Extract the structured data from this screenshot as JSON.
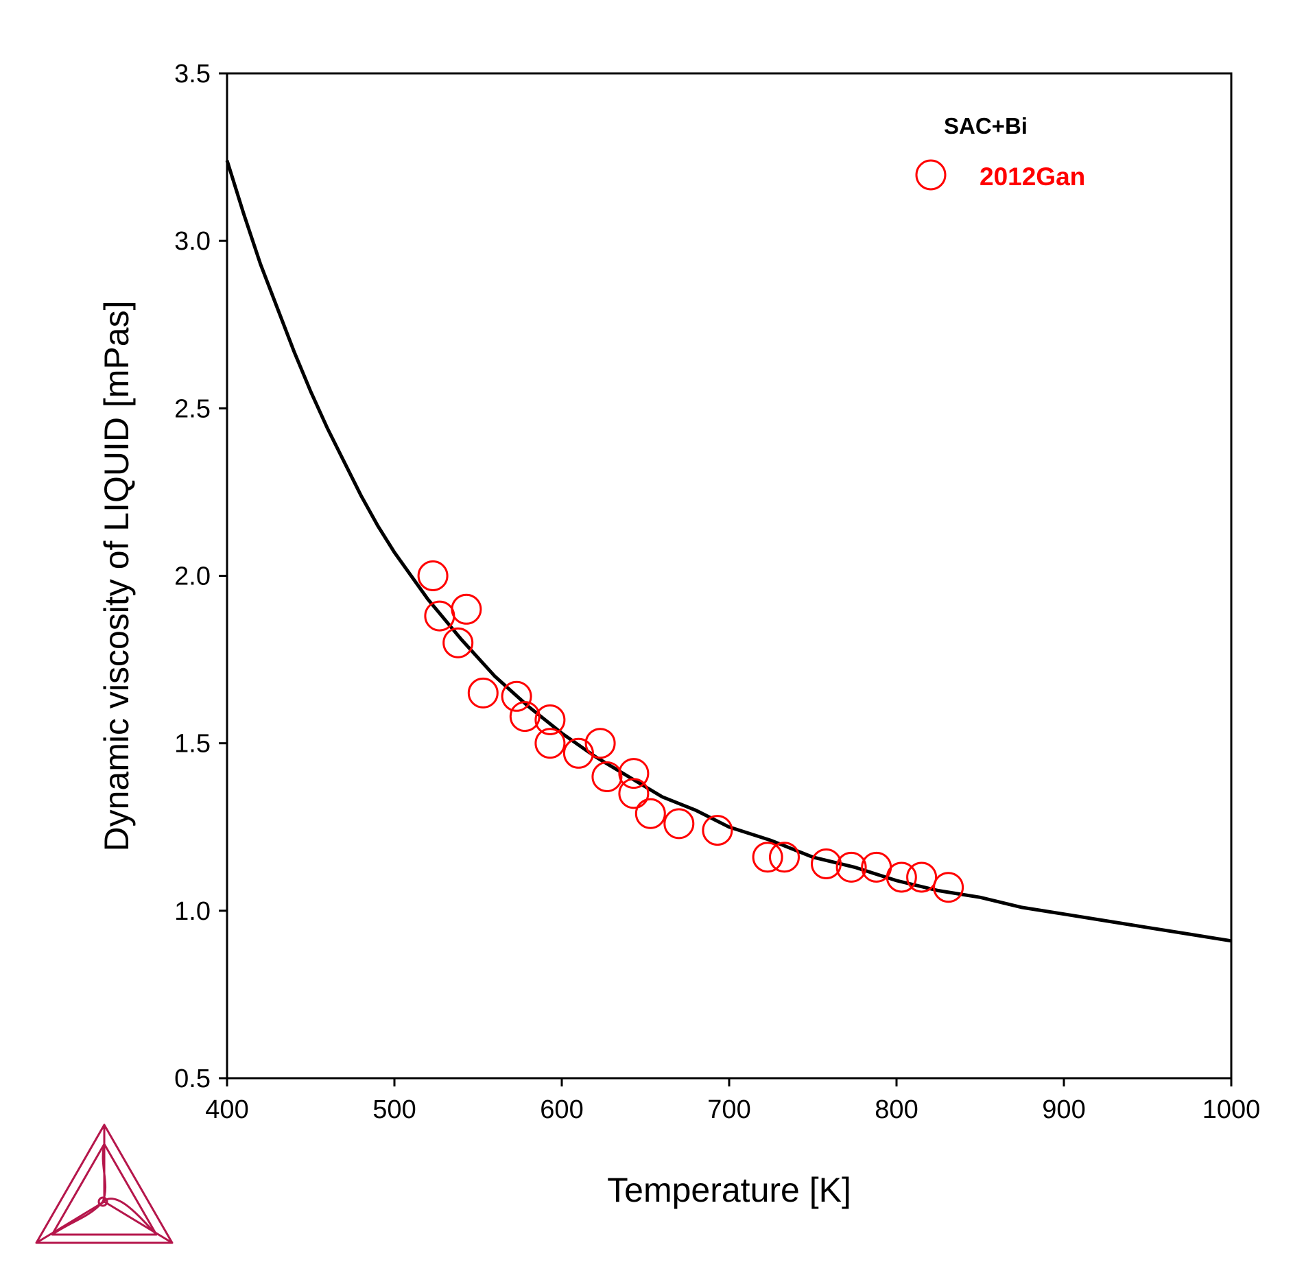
{
  "chart_data": {
    "type": "scatter",
    "title": "",
    "xlabel": "Temperature [K]",
    "ylabel": "Dynamic viscosity of LIQUID [mPas]",
    "xlim": [
      400,
      1000
    ],
    "ylim": [
      0.5,
      3.5
    ],
    "x_ticks": [
      "400",
      "500",
      "600",
      "700",
      "800",
      "900",
      "1000"
    ],
    "y_ticks": [
      "0.5",
      "1.0",
      "1.5",
      "2.0",
      "2.5",
      "3.0",
      "3.5"
    ],
    "grid": false,
    "legend": {
      "title": "SAC+Bi",
      "position": "top-right",
      "entries": [
        {
          "label": "2012Gan",
          "marker": "open-circle",
          "color": "#ff0000"
        }
      ]
    },
    "series": [
      {
        "kind": "line",
        "color": "#000000",
        "x": [
          400,
          410,
          420,
          430,
          440,
          450,
          460,
          470,
          480,
          490,
          500,
          520,
          540,
          560,
          580,
          600,
          620,
          640,
          660,
          680,
          700,
          725,
          750,
          775,
          800,
          825,
          850,
          875,
          900,
          925,
          950,
          975,
          1000
        ],
        "y": [
          3.24,
          3.08,
          2.93,
          2.8,
          2.67,
          2.55,
          2.44,
          2.34,
          2.24,
          2.15,
          2.07,
          1.93,
          1.81,
          1.7,
          1.61,
          1.53,
          1.46,
          1.4,
          1.34,
          1.3,
          1.25,
          1.21,
          1.16,
          1.13,
          1.09,
          1.06,
          1.04,
          1.01,
          0.99,
          0.97,
          0.95,
          0.93,
          0.91
        ]
      },
      {
        "name": "2012Gan",
        "kind": "scatter",
        "color": "#ff0000",
        "x": [
          523,
          527,
          543,
          538,
          553,
          573,
          578,
          593,
          593,
          623,
          610,
          627,
          643,
          643,
          653,
          670,
          693,
          723,
          733,
          758,
          773,
          788,
          803,
          815,
          831
        ],
        "y": [
          2.0,
          1.88,
          1.9,
          1.8,
          1.65,
          1.64,
          1.58,
          1.57,
          1.5,
          1.5,
          1.47,
          1.4,
          1.41,
          1.35,
          1.29,
          1.26,
          1.24,
          1.16,
          1.16,
          1.14,
          1.13,
          1.13,
          1.1,
          1.1,
          1.07
        ]
      }
    ],
    "colors": {
      "curve": "#000000",
      "data": "#ff0000",
      "logo": "#b5164b"
    }
  },
  "logo": {
    "icon": "thermo-calc-logo"
  }
}
